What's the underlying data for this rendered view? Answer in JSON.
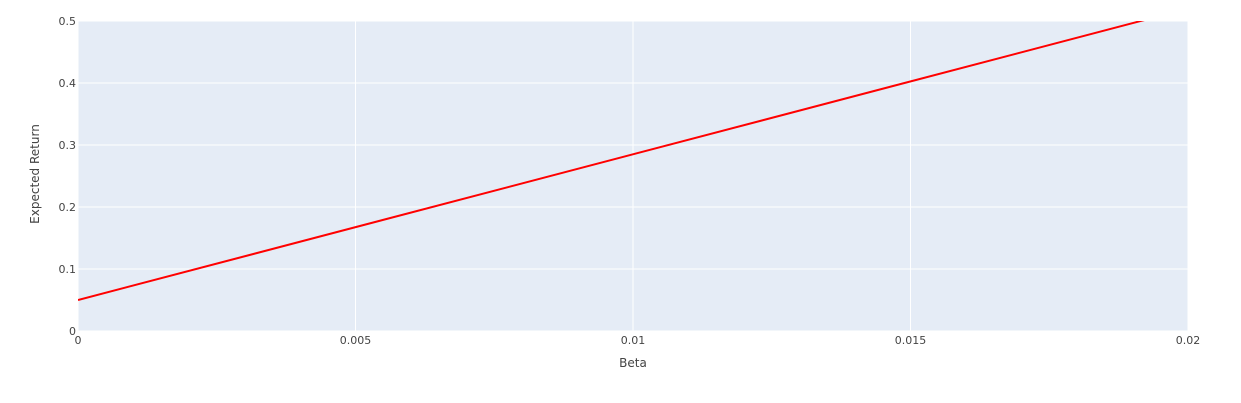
{
  "chart_data": {
    "type": "line",
    "title": "",
    "xlabel": "Beta",
    "ylabel": "Expected Return",
    "xlim": [
      0,
      0.02
    ],
    "ylim": [
      0,
      0.5
    ],
    "x_ticks": [
      0,
      0.005,
      0.01,
      0.015,
      0.02
    ],
    "x_tick_labels": [
      "0",
      "0.005",
      "0.01",
      "0.015",
      "0.02"
    ],
    "y_ticks": [
      0,
      0.1,
      0.2,
      0.3,
      0.4,
      0.5
    ],
    "y_tick_labels": [
      "0",
      "0.1",
      "0.2",
      "0.3",
      "0.4",
      "0.5"
    ],
    "grid": true,
    "background_color": "#e5ecf6",
    "grid_color": "#ffffff",
    "series": [
      {
        "color": "#ff0000",
        "x": [
          0,
          0.02
        ],
        "y": [
          0.05,
          0.52
        ]
      }
    ]
  }
}
